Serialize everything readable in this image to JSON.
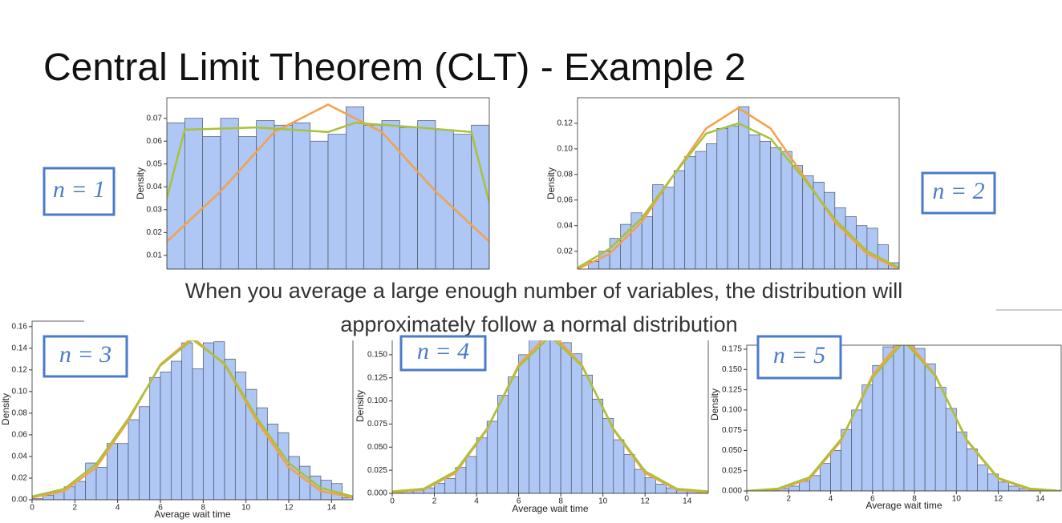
{
  "title": "Central Limit Theorem (CLT) - Example 2",
  "caption": [
    "When you average a large enough number of variables, the distribution will",
    "approximately follow a normal distribution"
  ],
  "chart_data": [
    {
      "type": "histogram",
      "label": "n = 1",
      "ylabel": "Density",
      "color": "#aec7f4",
      "bins": [
        0,
        1,
        2,
        3,
        4,
        5,
        6,
        7,
        8,
        9,
        10,
        11,
        12,
        13,
        14,
        15,
        16,
        17,
        18
      ],
      "values": [
        0.068,
        0.07,
        0.062,
        0.07,
        0.062,
        0.069,
        0.067,
        0.068,
        0.06,
        0.063,
        0.075,
        0.067,
        0.069,
        0.066,
        0.069,
        0.065,
        0.063,
        0.067
      ],
      "xlim": [
        0,
        18
      ],
      "ylim": [
        0.004,
        0.079
      ],
      "yticks": [
        0.01,
        0.02,
        0.03,
        0.04,
        0.05,
        0.06,
        0.07
      ],
      "lines": [
        {
          "color": "#f5a04a",
          "x": [
            0,
            3,
            6,
            9,
            12,
            15,
            18
          ],
          "values": [
            0.016,
            0.038,
            0.064,
            0.076,
            0.064,
            0.038,
            0.016
          ]
        },
        {
          "color": "#a8c23a",
          "x": [
            0,
            1,
            5,
            9,
            10.5,
            14,
            17,
            18
          ],
          "values": [
            0.035,
            0.065,
            0.066,
            0.064,
            0.068,
            0.066,
            0.064,
            0.033
          ]
        }
      ]
    },
    {
      "type": "histogram",
      "label": "n = 2",
      "ylabel": "Density",
      "color": "#aec7f4",
      "bins": [
        0,
        0.5,
        1,
        1.5,
        2,
        2.5,
        3,
        3.5,
        4,
        4.5,
        5,
        5.5,
        6,
        6.5,
        7,
        7.5,
        8,
        8.5,
        9,
        9.5,
        10,
        10.5,
        11,
        11.5,
        12,
        12.5,
        13,
        13.5,
        14,
        14.5,
        15
      ],
      "values": [
        0.005,
        0.012,
        0.02,
        0.03,
        0.041,
        0.05,
        0.047,
        0.072,
        0.07,
        0.083,
        0.094,
        0.098,
        0.104,
        0.116,
        0.118,
        0.133,
        0.111,
        0.106,
        0.101,
        0.098,
        0.087,
        0.079,
        0.074,
        0.066,
        0.054,
        0.047,
        0.04,
        0.038,
        0.025,
        0.011
      ],
      "xlim": [
        0,
        15
      ],
      "ylim": [
        0.006,
        0.14
      ],
      "yticks": [
        0.02,
        0.04,
        0.06,
        0.08,
        {
          "value": 0.1,
          "label": "0.10"
        },
        0.12
      ],
      "lines": [
        {
          "color": "#f5a04a",
          "x": [
            0,
            1.5,
            3,
            4.5,
            6,
            7.5,
            9,
            10.5,
            12,
            13.5,
            15
          ],
          "values": [
            0.006,
            0.018,
            0.043,
            0.08,
            0.116,
            0.132,
            0.116,
            0.08,
            0.043,
            0.018,
            0.006
          ]
        },
        {
          "color": "#a8c23a",
          "x": [
            0,
            1.5,
            3,
            4.5,
            6,
            7.5,
            9,
            10.5,
            12,
            13.5,
            15
          ],
          "values": [
            0.007,
            0.022,
            0.046,
            0.08,
            0.112,
            0.12,
            0.108,
            0.078,
            0.045,
            0.02,
            0.007
          ]
        }
      ]
    },
    {
      "type": "histogram",
      "label": "n = 3",
      "ylabel": "Density",
      "xlabel": "Average wait time",
      "color": "#aec7f4",
      "bins": [
        0,
        0.5,
        1,
        1.5,
        2,
        2.5,
        3,
        3.5,
        4,
        4.5,
        5,
        5.5,
        6,
        6.5,
        7,
        7.5,
        8,
        8.5,
        9,
        9.5,
        10,
        10.5,
        11,
        11.5,
        12,
        12.5,
        13,
        13.5,
        14,
        14.5,
        15
      ],
      "values": [
        0.001,
        0.004,
        0.008,
        0.012,
        0.017,
        0.034,
        0.03,
        0.052,
        0.052,
        0.074,
        0.086,
        0.113,
        0.118,
        0.128,
        0.145,
        0.121,
        0.145,
        0.146,
        0.13,
        0.118,
        0.102,
        0.085,
        0.07,
        0.062,
        0.04,
        0.031,
        0.022,
        0.018,
        0.015,
        0.002
      ],
      "xlim": [
        0,
        15
      ],
      "xticks": [
        0,
        2,
        4,
        6,
        8,
        10,
        12,
        14
      ],
      "ylim": [
        0,
        0.165
      ],
      "yticks": [
        {
          "value": 0,
          "label": "0.00"
        },
        {
          "value": 0.02,
          "label": "0.02"
        },
        {
          "value": 0.04,
          "label": "0.04"
        },
        {
          "value": 0.06,
          "label": "0.06"
        },
        {
          "value": 0.08,
          "label": "0.08"
        },
        {
          "value": 0.1,
          "label": "0.10"
        },
        {
          "value": 0.12,
          "label": "0.12"
        },
        {
          "value": 0.14,
          "label": "0.14"
        },
        {
          "value": 0.16,
          "label": "0.16"
        }
      ],
      "lines": [
        {
          "color": "#f5a04a",
          "x": [
            0,
            1.5,
            3,
            4.5,
            6,
            7.5,
            9,
            10.5,
            12,
            13.5,
            15
          ],
          "values": [
            0.002,
            0.008,
            0.03,
            0.073,
            0.125,
            0.15,
            0.125,
            0.073,
            0.03,
            0.008,
            0.002
          ]
        },
        {
          "color": "#a8c23a",
          "x": [
            0,
            1.5,
            3,
            4.5,
            6,
            7.5,
            9,
            10.5,
            12,
            13.5,
            15
          ],
          "values": [
            0.003,
            0.01,
            0.033,
            0.075,
            0.124,
            0.148,
            0.126,
            0.076,
            0.034,
            0.011,
            0.003
          ]
        }
      ]
    },
    {
      "type": "histogram",
      "label": "n = 4",
      "ylabel": "Density",
      "xlabel": "Average wait time",
      "color": "#aec7f4",
      "bins": [
        0,
        0.5,
        1,
        1.5,
        2,
        2.5,
        3,
        3.5,
        4,
        4.5,
        5,
        5.5,
        6,
        6.5,
        7,
        7.5,
        8,
        8.5,
        9,
        9.5,
        10,
        10.5,
        11,
        11.5,
        12,
        12.5,
        13,
        13.5,
        14,
        14.5,
        15
      ],
      "values": [
        0.001,
        0.002,
        0.003,
        0.006,
        0.011,
        0.016,
        0.028,
        0.04,
        0.06,
        0.078,
        0.106,
        0.126,
        0.15,
        0.166,
        0.172,
        0.176,
        0.163,
        0.151,
        0.128,
        0.102,
        0.081,
        0.058,
        0.042,
        0.026,
        0.017,
        0.01,
        0.006,
        0.003,
        0.002,
        0.001
      ],
      "xlim": [
        0,
        15
      ],
      "xticks": [
        0,
        2,
        4,
        6,
        8,
        10,
        12,
        14
      ],
      "ylim": [
        0,
        0.175
      ],
      "yticks": [
        {
          "value": 0,
          "label": "0.000"
        },
        {
          "value": 0.025,
          "label": "0.025"
        },
        {
          "value": 0.05,
          "label": "0.050"
        },
        {
          "value": 0.075,
          "label": "0.075"
        },
        {
          "value": 0.1,
          "label": "0.100"
        },
        {
          "value": 0.125,
          "label": "0.125"
        },
        {
          "value": 0.15,
          "label": "0.150"
        }
      ],
      "lines": [
        {
          "color": "#f5a04a",
          "x": [
            0,
            1.5,
            3,
            4.5,
            6,
            7.5,
            9,
            10.5,
            12,
            13.5,
            15
          ],
          "values": [
            0.001,
            0.004,
            0.022,
            0.069,
            0.139,
            0.175,
            0.139,
            0.069,
            0.022,
            0.004,
            0.001
          ]
        },
        {
          "color": "#a8c23a",
          "x": [
            0,
            1.5,
            3,
            4.5,
            6,
            7.5,
            9,
            10.5,
            12,
            13.5,
            15
          ],
          "values": [
            0.002,
            0.005,
            0.024,
            0.07,
            0.137,
            0.17,
            0.138,
            0.07,
            0.024,
            0.005,
            0.002
          ]
        }
      ]
    },
    {
      "type": "histogram",
      "label": "n = 5",
      "ylabel": "Density",
      "xlabel": "Average wait time",
      "color": "#aec7f4",
      "bins": [
        0,
        0.5,
        1,
        1.5,
        2,
        2.5,
        3,
        3.5,
        4,
        4.5,
        5,
        5.5,
        6,
        6.5,
        7,
        7.5,
        8,
        8.5,
        9,
        9.5,
        10,
        10.5,
        11,
        11.5,
        12,
        12.5,
        13,
        13.5,
        14,
        14.5,
        15
      ],
      "values": [
        0,
        0.001,
        0.001,
        0.003,
        0.006,
        0.012,
        0.019,
        0.034,
        0.05,
        0.076,
        0.1,
        0.131,
        0.155,
        0.178,
        0.186,
        0.19,
        0.176,
        0.157,
        0.128,
        0.102,
        0.073,
        0.052,
        0.032,
        0.021,
        0.011,
        0.006,
        0.003,
        0.001,
        0.001,
        0
      ],
      "xlim": [
        0,
        15
      ],
      "xticks": [
        0,
        2,
        4,
        6,
        8,
        10,
        12,
        14
      ],
      "ylim": [
        0,
        0.18
      ],
      "yticks": [
        {
          "value": 0,
          "label": "0.000"
        },
        {
          "value": 0.025,
          "label": "0.025"
        },
        {
          "value": 0.05,
          "label": "0.050"
        },
        {
          "value": 0.075,
          "label": "0.075"
        },
        {
          "value": 0.1,
          "label": "0.100"
        },
        {
          "value": 0.125,
          "label": "0.125"
        },
        {
          "value": 0.15,
          "label": "0.150"
        },
        {
          "value": 0.175,
          "label": "0.175"
        }
      ],
      "lines": [
        {
          "color": "#f5a04a",
          "x": [
            0,
            1.5,
            3,
            4.5,
            6,
            7.5,
            9,
            10.5,
            12,
            13.5,
            15
          ],
          "values": [
            0,
            0.002,
            0.015,
            0.062,
            0.143,
            0.19,
            0.143,
            0.062,
            0.015,
            0.002,
            0
          ]
        },
        {
          "color": "#a8c23a",
          "x": [
            0,
            1.5,
            3,
            4.5,
            6,
            7.5,
            9,
            10.5,
            12,
            13.5,
            15
          ],
          "values": [
            0,
            0.003,
            0.017,
            0.064,
            0.14,
            0.185,
            0.142,
            0.063,
            0.016,
            0.003,
            0
          ]
        }
      ]
    }
  ]
}
